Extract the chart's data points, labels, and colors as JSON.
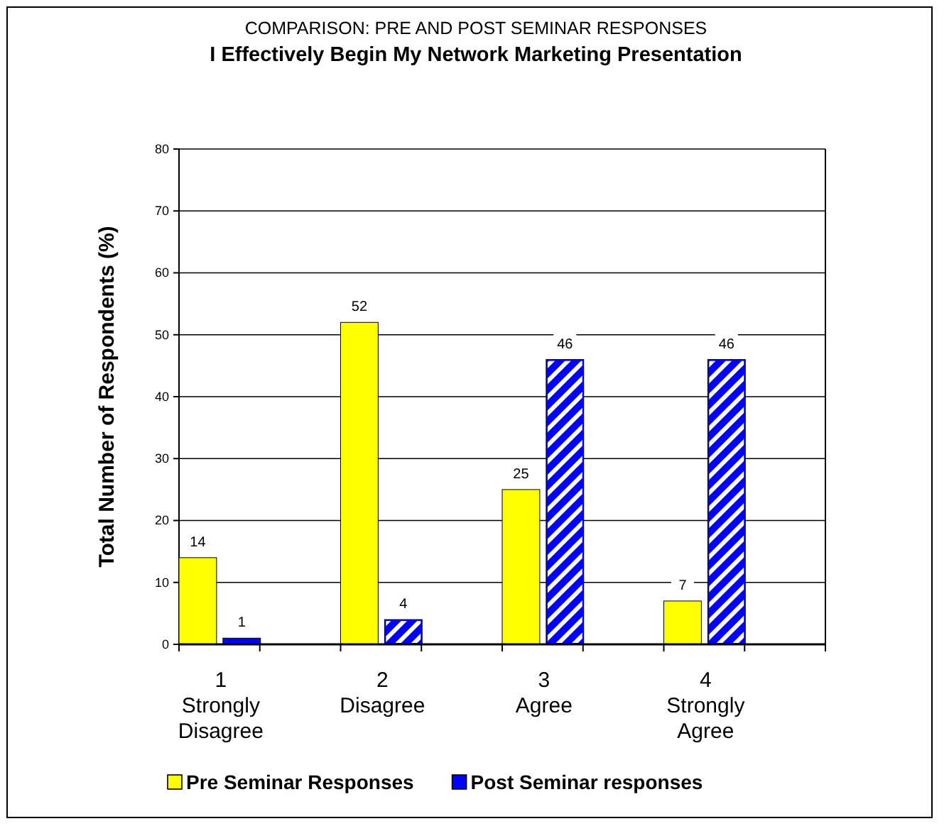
{
  "chart_data": {
    "type": "bar",
    "title": "COMPARISON: PRE AND POST SEMINAR RESPONSES",
    "subtitle": "I Effectively Begin My Network Marketing Presentation",
    "ylabel": "Total Number of Respondents (%)",
    "categories": [
      "1\nStrongly\nDisagree",
      "2\nDisagree",
      "3\nAgree",
      "4\nStrongly\nAgree"
    ],
    "series": [
      {
        "name": "Pre Seminar Responses",
        "color": "#ffff00",
        "values": [
          14,
          52,
          25,
          7
        ]
      },
      {
        "name": "Post Seminar responses",
        "color": "#0000ff",
        "values": [
          1,
          4,
          46,
          46
        ]
      }
    ],
    "ylim": [
      0,
      80
    ],
    "yticks": [
      0,
      10,
      20,
      30,
      40,
      50,
      60,
      70,
      80
    ],
    "grid": "y",
    "legend": "bottom",
    "data_labels": true
  }
}
